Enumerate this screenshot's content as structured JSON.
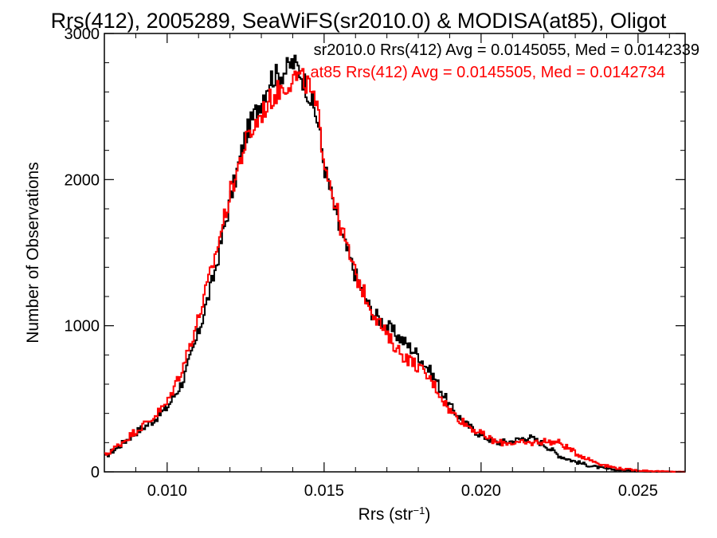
{
  "chart_data": {
    "type": "line",
    "title": "Rrs(412), 2005289, SeaWiFS(sr2010.0) & MODISA(at85), Oligot",
    "xlabel_main": "Rrs (str",
    "xlabel_sup": "−1",
    "xlabel_close": ")",
    "ylabel": "Number of Observations",
    "xlim": [
      0.008,
      0.0265
    ],
    "ylim": [
      0,
      3000
    ],
    "x_ticks": [
      {
        "value": 0.01,
        "label": "0.010"
      },
      {
        "value": 0.015,
        "label": "0.015"
      },
      {
        "value": 0.02,
        "label": "0.020"
      },
      {
        "value": 0.025,
        "label": "0.025"
      }
    ],
    "y_ticks": [
      {
        "value": 0,
        "label": "0"
      },
      {
        "value": 1000,
        "label": "1000"
      },
      {
        "value": 2000,
        "label": "2000"
      },
      {
        "value": 3000,
        "label": "3000"
      }
    ],
    "legend": {
      "placement": "top-right",
      "entries": [
        {
          "text": "sr2010.0 Rrs(412) Avg = 0.0145055, Med = 0.0142339",
          "color": "#000000"
        },
        {
          "text": "at85 Rrs(412) Avg = 0.0145505, Med = 0.0142734",
          "color": "#ff0000"
        }
      ]
    },
    "series": [
      {
        "color": "#000000",
        "x": [
          0.008,
          0.0085,
          0.009,
          0.0095,
          0.01,
          0.0105,
          0.011,
          0.0115,
          0.012,
          0.0125,
          0.013,
          0.0133,
          0.0136,
          0.0138,
          0.014,
          0.0142,
          0.0145,
          0.0148,
          0.015,
          0.0155,
          0.016,
          0.0165,
          0.017,
          0.0175,
          0.018,
          0.0185,
          0.019,
          0.0195,
          0.02,
          0.0205,
          0.021,
          0.0215,
          0.022,
          0.0225,
          0.023,
          0.0235,
          0.024,
          0.0245,
          0.025,
          0.0255,
          0.026,
          0.0265
        ],
        "y": [
          100,
          180,
          270,
          340,
          440,
          620,
          950,
          1350,
          1850,
          2300,
          2550,
          2700,
          2720,
          2750,
          2800,
          2760,
          2600,
          2400,
          2100,
          1650,
          1350,
          1100,
          1000,
          900,
          800,
          650,
          450,
          330,
          250,
          200,
          210,
          240,
          190,
          110,
          70,
          40,
          20,
          10,
          5,
          3,
          0,
          0
        ]
      },
      {
        "color": "#ff0000",
        "x": [
          0.008,
          0.0085,
          0.009,
          0.0095,
          0.01,
          0.0105,
          0.011,
          0.0115,
          0.012,
          0.0125,
          0.013,
          0.0133,
          0.0136,
          0.0138,
          0.014,
          0.0142,
          0.0145,
          0.0148,
          0.015,
          0.0155,
          0.016,
          0.0165,
          0.017,
          0.0175,
          0.018,
          0.0185,
          0.019,
          0.0195,
          0.02,
          0.0205,
          0.021,
          0.0215,
          0.022,
          0.0225,
          0.023,
          0.0235,
          0.024,
          0.0245,
          0.025,
          0.0255,
          0.026,
          0.0265
        ],
        "y": [
          110,
          190,
          280,
          360,
          470,
          720,
          1050,
          1450,
          1900,
          2250,
          2450,
          2550,
          2620,
          2650,
          2700,
          2700,
          2650,
          2450,
          2150,
          1700,
          1350,
          1120,
          930,
          800,
          720,
          600,
          420,
          330,
          260,
          200,
          200,
          195,
          210,
          200,
          130,
          80,
          40,
          20,
          10,
          5,
          2,
          0
        ]
      }
    ]
  }
}
